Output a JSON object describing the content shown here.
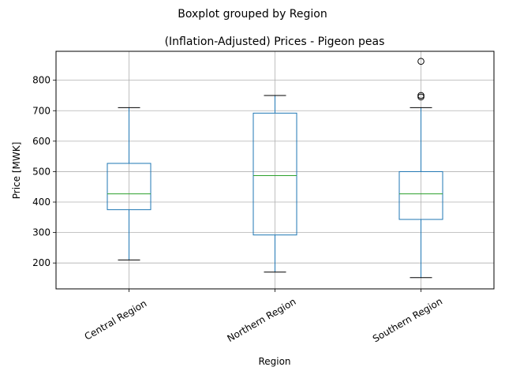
{
  "chart_data": {
    "type": "boxplot",
    "suptitle": "Boxplot grouped by Region",
    "title": "(Inflation-Adjusted) Prices - Pigeon peas",
    "xlabel": "Region",
    "ylabel": "Price [MWK]",
    "ylim": [
      115,
      895
    ],
    "yticks": [
      200,
      300,
      400,
      500,
      600,
      700,
      800
    ],
    "grid": true,
    "categories": [
      "Central Region",
      "Northern Region",
      "Southern Region"
    ],
    "boxes": [
      {
        "whislo": 210,
        "q1": 375,
        "med": 427,
        "q3": 527,
        "whishi": 710,
        "fliers": []
      },
      {
        "whislo": 170,
        "q1": 292,
        "med": 487,
        "q3": 692,
        "whishi": 750,
        "fliers": []
      },
      {
        "whislo": 152,
        "q1": 343,
        "med": 427,
        "q3": 500,
        "whishi": 710,
        "fliers": [
          745,
          750,
          862
        ]
      }
    ],
    "colors": {
      "box": "#1f77b4",
      "median": "#2ca02c",
      "whisker_cap": "#000000",
      "grid": "#b0b0b0"
    }
  }
}
